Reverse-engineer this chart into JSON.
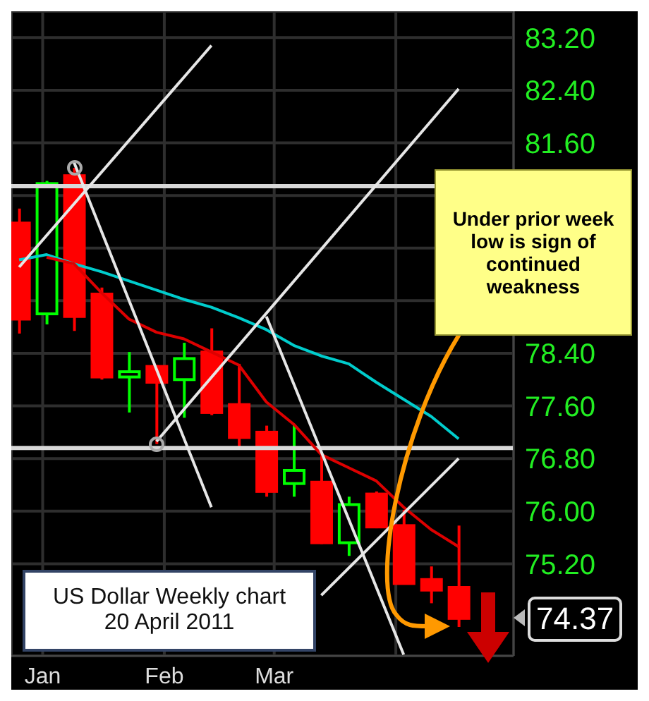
{
  "chart_data": {
    "type": "candlestick",
    "x": [
      "2010-12-26",
      "2011-01-02",
      "2011-01-09",
      "2011-01-16",
      "2011-01-23",
      "2011-01-30",
      "2011-02-06",
      "2011-02-13",
      "2011-02-20",
      "2011-02-27",
      "2011-03-06",
      "2011-03-13",
      "2011-03-20",
      "2011-03-27",
      "2011-04-03",
      "2011-04-10",
      "2011-04-17"
    ],
    "ohlc": [
      [
        80.38,
        80.6,
        78.7,
        78.92
      ],
      [
        79.0,
        81.02,
        78.84,
        80.98
      ],
      [
        81.1,
        81.22,
        78.74,
        78.96
      ],
      [
        79.3,
        79.4,
        78.0,
        78.04
      ],
      [
        78.04,
        78.42,
        77.5,
        78.12
      ],
      [
        78.2,
        78.22,
        77.02,
        77.96
      ],
      [
        78.0,
        78.56,
        77.42,
        78.32
      ],
      [
        78.42,
        78.78,
        77.46,
        77.5
      ],
      [
        77.62,
        78.24,
        76.96,
        77.12
      ],
      [
        77.2,
        77.3,
        76.22,
        76.3
      ],
      [
        76.42,
        77.32,
        76.22,
        76.62
      ],
      [
        76.44,
        76.84,
        75.5,
        75.52
      ],
      [
        75.52,
        76.22,
        75.32,
        76.1
      ],
      [
        76.26,
        76.3,
        75.74,
        75.76
      ],
      [
        75.78,
        76.02,
        74.9,
        74.9
      ],
      [
        74.96,
        75.16,
        74.6,
        74.8
      ],
      [
        74.84,
        75.78,
        74.24,
        74.37
      ]
    ],
    "colors": [
      "#ff0000",
      "#00ff00",
      "#ff0000",
      "#ff0000",
      "#00ff00",
      "#ff0000",
      "#00ff00",
      "#ff0000",
      "#ff0000",
      "#ff0000",
      "#00ff00",
      "#ff0000",
      "#00ff00",
      "#ff0000",
      "#ff0000",
      "#ff0000",
      "#ff0000"
    ],
    "series": [
      {
        "type": "line",
        "color": "#00cccc",
        "values": [
          79.82,
          79.9,
          79.76,
          79.64,
          79.5,
          79.36,
          79.22,
          79.1,
          78.94,
          78.76,
          78.52,
          78.36,
          78.24,
          77.96,
          77.7,
          77.44,
          77.1
        ]
      },
      {
        "type": "line",
        "color": "#dd0000",
        "values": [
          null,
          79.86,
          79.76,
          79.32,
          78.92,
          78.72,
          78.62,
          78.42,
          78.22,
          77.66,
          77.32,
          76.86,
          76.66,
          76.46,
          76.06,
          75.72,
          75.46
        ]
      },
      {
        "type": "line",
        "color": "#e6e6e6",
        "x": [
          "2011-01-09",
          "2011-02-13"
        ],
        "values": [
          81.3,
          76.06
        ]
      },
      {
        "type": "line",
        "color": "#e6e6e6",
        "x": [
          "2010-12-26",
          "2011-02-13"
        ],
        "values": [
          79.71,
          83.08
        ]
      },
      {
        "type": "line",
        "color": "#e6e6e6",
        "x": [
          "2011-01-30",
          "2011-04-17"
        ],
        "values": [
          77.06,
          82.42
        ]
      },
      {
        "type": "line",
        "color": "#e6e6e6",
        "x": [
          "2011-02-27",
          "2011-04-03"
        ],
        "values": [
          78.96,
          73.82
        ]
      },
      {
        "type": "line",
        "color": "#e6e6e6",
        "x": [
          "2011-03-13",
          "2011-04-17"
        ],
        "values": [
          74.72,
          76.8
        ]
      }
    ],
    "ref_lines": [
      {
        "axis": "y",
        "value": 80.94,
        "color": "#d8d8d8"
      },
      {
        "axis": "y",
        "value": 76.96,
        "color": "#d8d8d8"
      }
    ],
    "xlim": [
      "2010-12-24",
      "2011-05-01"
    ],
    "xticks": [
      {
        "value": "2011-01-01",
        "label": "Jan"
      },
      {
        "value": "2011-02-01",
        "label": "Feb"
      },
      {
        "value": "2011-03-01",
        "label": "Mar"
      },
      {
        "value": "2011-04-01",
        "label": null
      }
    ],
    "ylim": [
      73.8,
      83.6
    ],
    "yticks": [
      {
        "value": 75.2,
        "label": "75.20"
      },
      {
        "value": 76,
        "label": "76.00"
      },
      {
        "value": 76.8,
        "label": "76.80"
      },
      {
        "value": 77.6,
        "label": "77.60"
      },
      {
        "value": 78.4,
        "label": "78.40"
      },
      {
        "value": 79.2,
        "label": null
      },
      {
        "value": 80,
        "label": null
      },
      {
        "value": 80.8,
        "label": null
      },
      {
        "value": 81.6,
        "label": "81.60"
      },
      {
        "value": 82.4,
        "label": "82.40"
      },
      {
        "value": 83.2,
        "label": "83.20"
      }
    ],
    "grid": true,
    "annotations": [
      "US Dollar Weekly chart\n20 April 2011",
      "Under prior week low is sign of continued weakness",
      {
        "text": "74.37",
        "x": "2011-04-17",
        "y": 74.37
      }
    ]
  }
}
